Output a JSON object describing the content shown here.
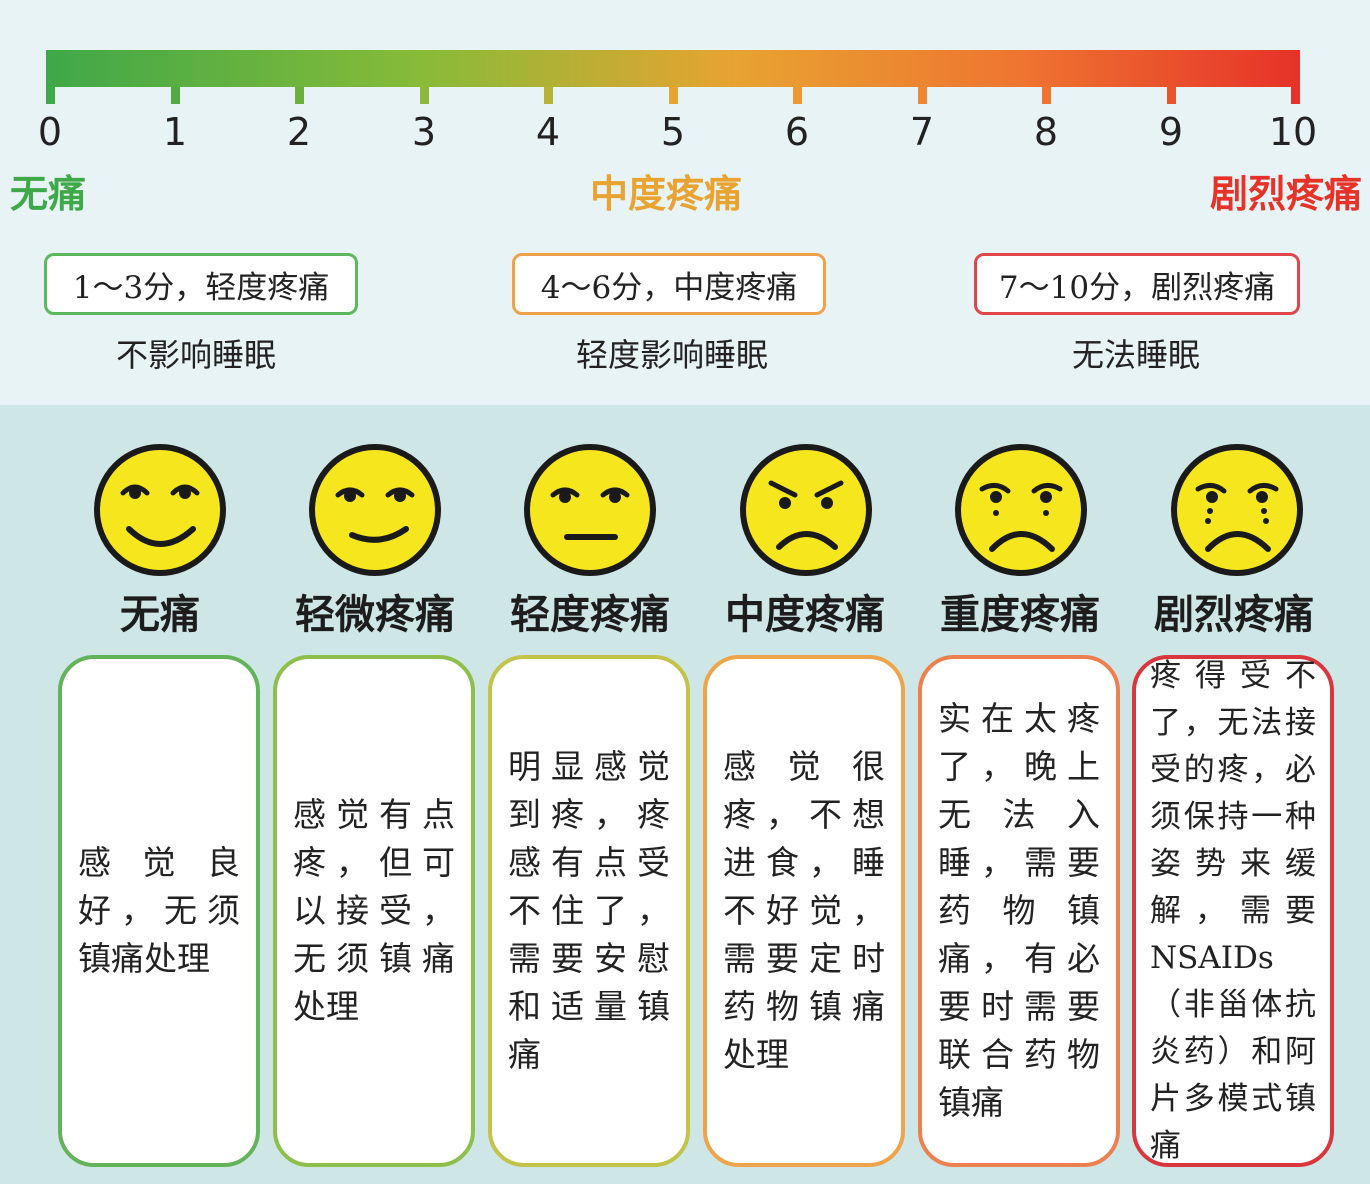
{
  "scale": {
    "ticks": [
      "0",
      "1",
      "2",
      "3",
      "4",
      "5",
      "6",
      "7",
      "8",
      "9",
      "10"
    ],
    "labels": {
      "none": "无痛",
      "moderate": "中度疼痛",
      "severe": "剧烈疼痛"
    },
    "colors": {
      "green": "#3fa848",
      "orange": "#e8a331",
      "red": "#e63229"
    }
  },
  "ranges": [
    {
      "label": "1～3分，轻度疼痛",
      "effect": "不影响睡眠",
      "color": "#5cb85a"
    },
    {
      "label": "4～6分，中度疼痛",
      "effect": "轻度影响睡眠",
      "color": "#eea24a"
    },
    {
      "label": "7～10分，剧烈疼痛",
      "effect": "无法睡眠",
      "color": "#e0464a"
    }
  ],
  "levels": [
    {
      "name": "无痛",
      "desc": "感觉良好，无须镇痛处理",
      "border": "#62b35a"
    },
    {
      "name": "轻微疼痛",
      "desc": "感觉有点疼，但可以接受，无须镇痛处理",
      "border": "#8dbf4a"
    },
    {
      "name": "轻度疼痛",
      "desc": "明显感觉到疼，疼感有点受不住了，需要安慰和适量镇痛",
      "border": "#c3c34a"
    },
    {
      "name": "中度疼痛",
      "desc": "感觉很疼，不想进食，睡不好觉，需要定时药物镇痛处理",
      "border": "#eea44a"
    },
    {
      "name": "重度疼痛",
      "desc": "实在太疼了，晚上无法入睡，需要药物镇痛，有必要时需要联合药物镇痛",
      "border": "#ec8050"
    },
    {
      "name": "剧烈疼痛",
      "desc": "疼得受不了，无法接受的疼，必须保持一种姿势来缓解，需要NSAIDs（非甾体抗炎药）和阿片多模式镇痛",
      "border": "#d9363e"
    }
  ]
}
